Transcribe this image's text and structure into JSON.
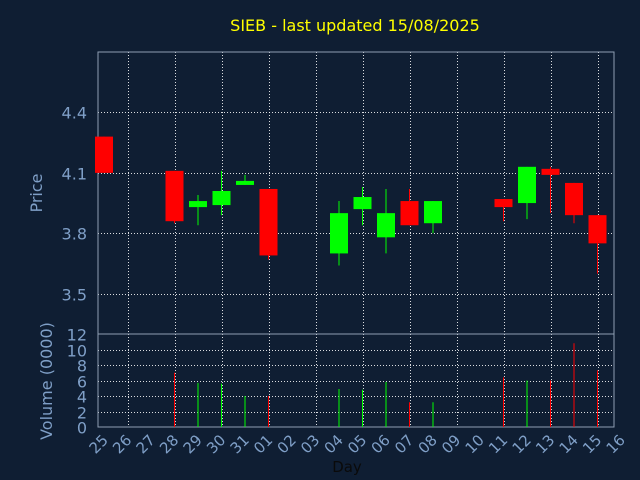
{
  "chart_data": {
    "type": "candlestick",
    "title": "SIEB - last updated 15/08/2025",
    "xlabel": "Day",
    "ylabel": "Price",
    "volume_label": "Volume (0000)",
    "grid": true,
    "price_axis": {
      "ylim": [
        3.3,
        4.7
      ],
      "ticks": [
        3.5,
        3.8,
        4.1,
        4.4
      ]
    },
    "volume_axis": {
      "ylim": [
        0,
        12
      ],
      "ticks": [
        0,
        2,
        4,
        6,
        8,
        10,
        12
      ]
    },
    "categories": [
      "25",
      "26",
      "27",
      "28",
      "29",
      "30",
      "31",
      "01",
      "02",
      "03",
      "04",
      "05",
      "06",
      "07",
      "08",
      "09",
      "10",
      "11",
      "12",
      "13",
      "14",
      "15",
      "16"
    ],
    "candles": [
      {
        "day": "25",
        "open": 4.28,
        "high": 4.28,
        "low": 4.1,
        "close": 4.1,
        "volume": 0
      },
      {
        "day": "28",
        "open": 4.11,
        "high": 4.11,
        "low": 3.85,
        "close": 3.86,
        "volume": 7.0
      },
      {
        "day": "29",
        "open": 3.93,
        "high": 3.99,
        "low": 3.84,
        "close": 3.96,
        "volume": 5.7
      },
      {
        "day": "30",
        "open": 3.94,
        "high": 4.11,
        "low": 3.89,
        "close": 4.01,
        "volume": 5.6
      },
      {
        "day": "31",
        "open": 4.04,
        "high": 4.09,
        "low": 4.04,
        "close": 4.06,
        "volume": 4.0
      },
      {
        "day": "01",
        "open": 4.02,
        "high": 4.02,
        "low": 3.67,
        "close": 3.69,
        "volume": 4.0
      },
      {
        "day": "04",
        "open": 3.7,
        "high": 3.96,
        "low": 3.64,
        "close": 3.9,
        "volume": 4.9
      },
      {
        "day": "05",
        "open": 3.92,
        "high": 4.03,
        "low": 3.84,
        "close": 3.98,
        "volume": 4.8
      },
      {
        "day": "06",
        "open": 3.78,
        "high": 4.02,
        "low": 3.7,
        "close": 3.9,
        "volume": 5.8
      },
      {
        "day": "07",
        "open": 3.96,
        "high": 4.02,
        "low": 3.84,
        "close": 3.84,
        "volume": 3.2
      },
      {
        "day": "08",
        "open": 3.85,
        "high": 3.96,
        "low": 3.8,
        "close": 3.96,
        "volume": 3.2
      },
      {
        "day": "11",
        "open": 3.97,
        "high": 3.97,
        "low": 3.86,
        "close": 3.93,
        "volume": 6.4
      },
      {
        "day": "12",
        "open": 3.95,
        "high": 4.13,
        "low": 3.87,
        "close": 4.13,
        "volume": 6.0
      },
      {
        "day": "13",
        "open": 4.12,
        "high": 4.13,
        "low": 3.9,
        "close": 4.09,
        "volume": 6.0
      },
      {
        "day": "14",
        "open": 4.05,
        "high": 4.05,
        "low": 3.85,
        "close": 3.89,
        "volume": 10.8
      },
      {
        "day": "15",
        "open": 3.89,
        "high": 3.89,
        "low": 3.6,
        "close": 3.75,
        "volume": 7.3
      }
    ],
    "colors": {
      "background": "#0f1e33",
      "frame": "#8f9fb3",
      "title": "#ffff00",
      "axis_text": "#7f9fc7",
      "up": "#00ff00",
      "down": "#ff0000"
    }
  }
}
